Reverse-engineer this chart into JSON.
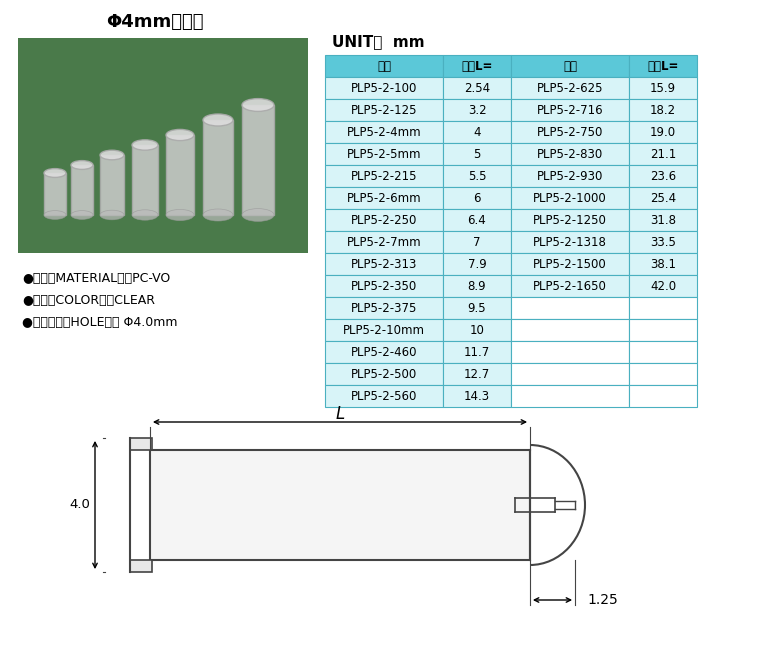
{
  "title": "Φ4mm导光柱",
  "unit_text": "UNIT：  mm",
  "header_bg": "#5bc8d8",
  "cell_bg": "#d8f4f8",
  "cell_bg_white": "#ffffff",
  "table_border": "#4ab0c0",
  "col1_header": "型号",
  "col2_header": "长度L=",
  "col3_header": "型号",
  "col4_header": "长度L=",
  "left_data": [
    [
      "PLP5-2-100",
      "2.54"
    ],
    [
      "PLP5-2-125",
      "3.2"
    ],
    [
      "PLP5-2-4mm",
      "4"
    ],
    [
      "PLP5-2-5mm",
      "5"
    ],
    [
      "PLP5-2-215",
      "5.5"
    ],
    [
      "PLP5-2-6mm",
      "6"
    ],
    [
      "PLP5-2-250",
      "6.4"
    ],
    [
      "PLP5-2-7mm",
      "7"
    ],
    [
      "PLP5-2-313",
      "7.9"
    ],
    [
      "PLP5-2-350",
      "8.9"
    ],
    [
      "PLP5-2-375",
      "9.5"
    ],
    [
      "PLP5-2-10mm",
      "10"
    ],
    [
      "PLP5-2-460",
      "11.7"
    ],
    [
      "PLP5-2-500",
      "12.7"
    ],
    [
      "PLP5-2-560",
      "14.3"
    ]
  ],
  "right_data": [
    [
      "PLP5-2-625",
      "15.9"
    ],
    [
      "PLP5-2-716",
      "18.2"
    ],
    [
      "PLP5-2-750",
      "19.0"
    ],
    [
      "PLP5-2-830",
      "21.1"
    ],
    [
      "PLP5-2-930",
      "23.6"
    ],
    [
      "PLP5-2-1000",
      "25.4"
    ],
    [
      "PLP5-2-1250",
      "31.8"
    ],
    [
      "PLP5-2-1318",
      "33.5"
    ],
    [
      "PLP5-2-1500",
      "38.1"
    ],
    [
      "PLP5-2-1650",
      "42.0"
    ]
  ],
  "bullet1": "●材质（MATERIAL）：PC-VO",
  "bullet2": "●颜色（COLOR）：CLEAR",
  "bullet3": "●配合孔径（HOLE）： Φ4.0mm",
  "dim_40": "4.0",
  "dim_L": "L",
  "dim_125": "1.25",
  "bg_color": "#ffffff",
  "photo_bg": "#4a7a4a",
  "draw_line_color": "#444444"
}
